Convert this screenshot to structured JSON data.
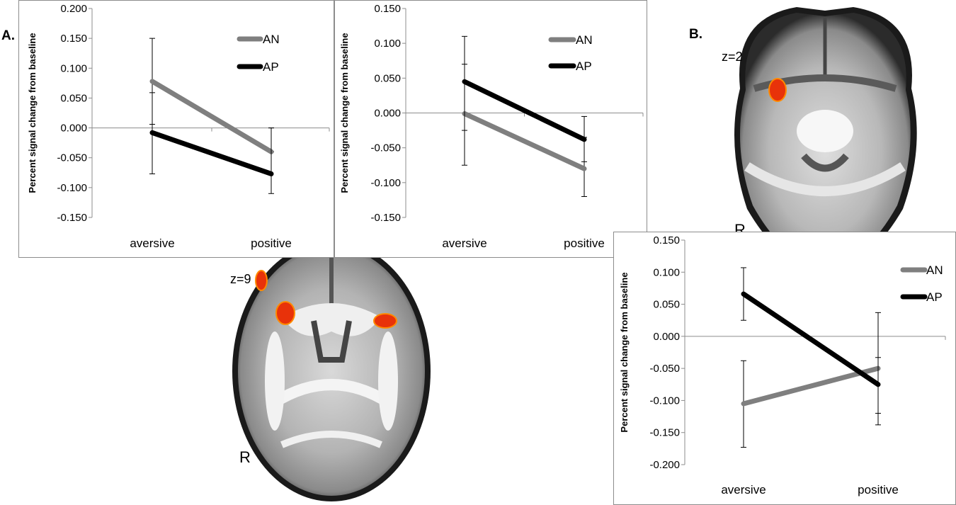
{
  "panels": {
    "a_label": "A.",
    "b_label": "B."
  },
  "brain_a": {
    "slice_label": "z=9",
    "side_label": "R"
  },
  "brain_b": {
    "slice_label": "z=2",
    "side_label": "R"
  },
  "colors": {
    "AN": "#7f7f7f",
    "AP": "#000000",
    "activation": "#e8320a"
  },
  "chart_data": [
    {
      "type": "line",
      "title": "",
      "xlabel": "",
      "ylabel": "Percent signal change from baseline",
      "categories": [
        "aversive",
        "positive"
      ],
      "ylim": [
        -0.15,
        0.2
      ],
      "yticks": [
        "0.200",
        "0.150",
        "0.100",
        "0.050",
        "0.000",
        "-0.050",
        "-0.100",
        "-0.150"
      ],
      "ytick_values": [
        0.2,
        0.15,
        0.1,
        0.05,
        0.0,
        -0.05,
        -0.1,
        -0.15
      ],
      "legend_position": "top-right",
      "series": [
        {
          "name": "AN",
          "values": [
            0.078,
            -0.04
          ],
          "error_low": [
            0.006,
            -0.04
          ],
          "error_high": [
            0.15,
            0.0
          ]
        },
        {
          "name": "AP",
          "values": [
            -0.008,
            -0.077
          ],
          "error_low": [
            -0.077,
            -0.11
          ],
          "error_high": [
            0.059,
            0.0
          ]
        }
      ]
    },
    {
      "type": "line",
      "title": "",
      "xlabel": "",
      "ylabel": "Percent signal change from baseline",
      "categories": [
        "aversive",
        "positive"
      ],
      "ylim": [
        -0.15,
        0.15
      ],
      "yticks": [
        "0.150",
        "0.100",
        "0.050",
        "0.000",
        "-0.050",
        "-0.100",
        "-0.150"
      ],
      "ytick_values": [
        0.15,
        0.1,
        0.05,
        0.0,
        -0.05,
        -0.1,
        -0.15
      ],
      "legend_position": "top-right",
      "series": [
        {
          "name": "AN",
          "values": [
            -0.001,
            -0.08
          ],
          "error_low": [
            -0.075,
            -0.12
          ],
          "error_high": [
            0.07,
            -0.035
          ]
        },
        {
          "name": "AP",
          "values": [
            0.045,
            -0.038
          ],
          "error_low": [
            -0.025,
            -0.07
          ],
          "error_high": [
            0.11,
            -0.005
          ]
        }
      ]
    },
    {
      "type": "line",
      "title": "",
      "xlabel": "",
      "ylabel": "Percent signal change from baseline",
      "categories": [
        "aversive",
        "positive"
      ],
      "ylim": [
        -0.2,
        0.15
      ],
      "yticks": [
        "0.150",
        "0.100",
        "0.050",
        "0.000",
        "-0.050",
        "-0.100",
        "-0.150",
        "-0.200"
      ],
      "ytick_values": [
        0.15,
        0.1,
        0.05,
        0.0,
        -0.05,
        -0.1,
        -0.15,
        -0.2
      ],
      "legend_position": "top-right",
      "series": [
        {
          "name": "AN",
          "values": [
            -0.105,
            -0.05
          ],
          "error_low": [
            -0.173,
            -0.12
          ],
          "error_high": [
            -0.038,
            0.037
          ]
        },
        {
          "name": "AP",
          "values": [
            0.066,
            -0.075
          ],
          "error_low": [
            0.025,
            -0.138
          ],
          "error_high": [
            0.107,
            -0.033
          ]
        }
      ]
    }
  ]
}
